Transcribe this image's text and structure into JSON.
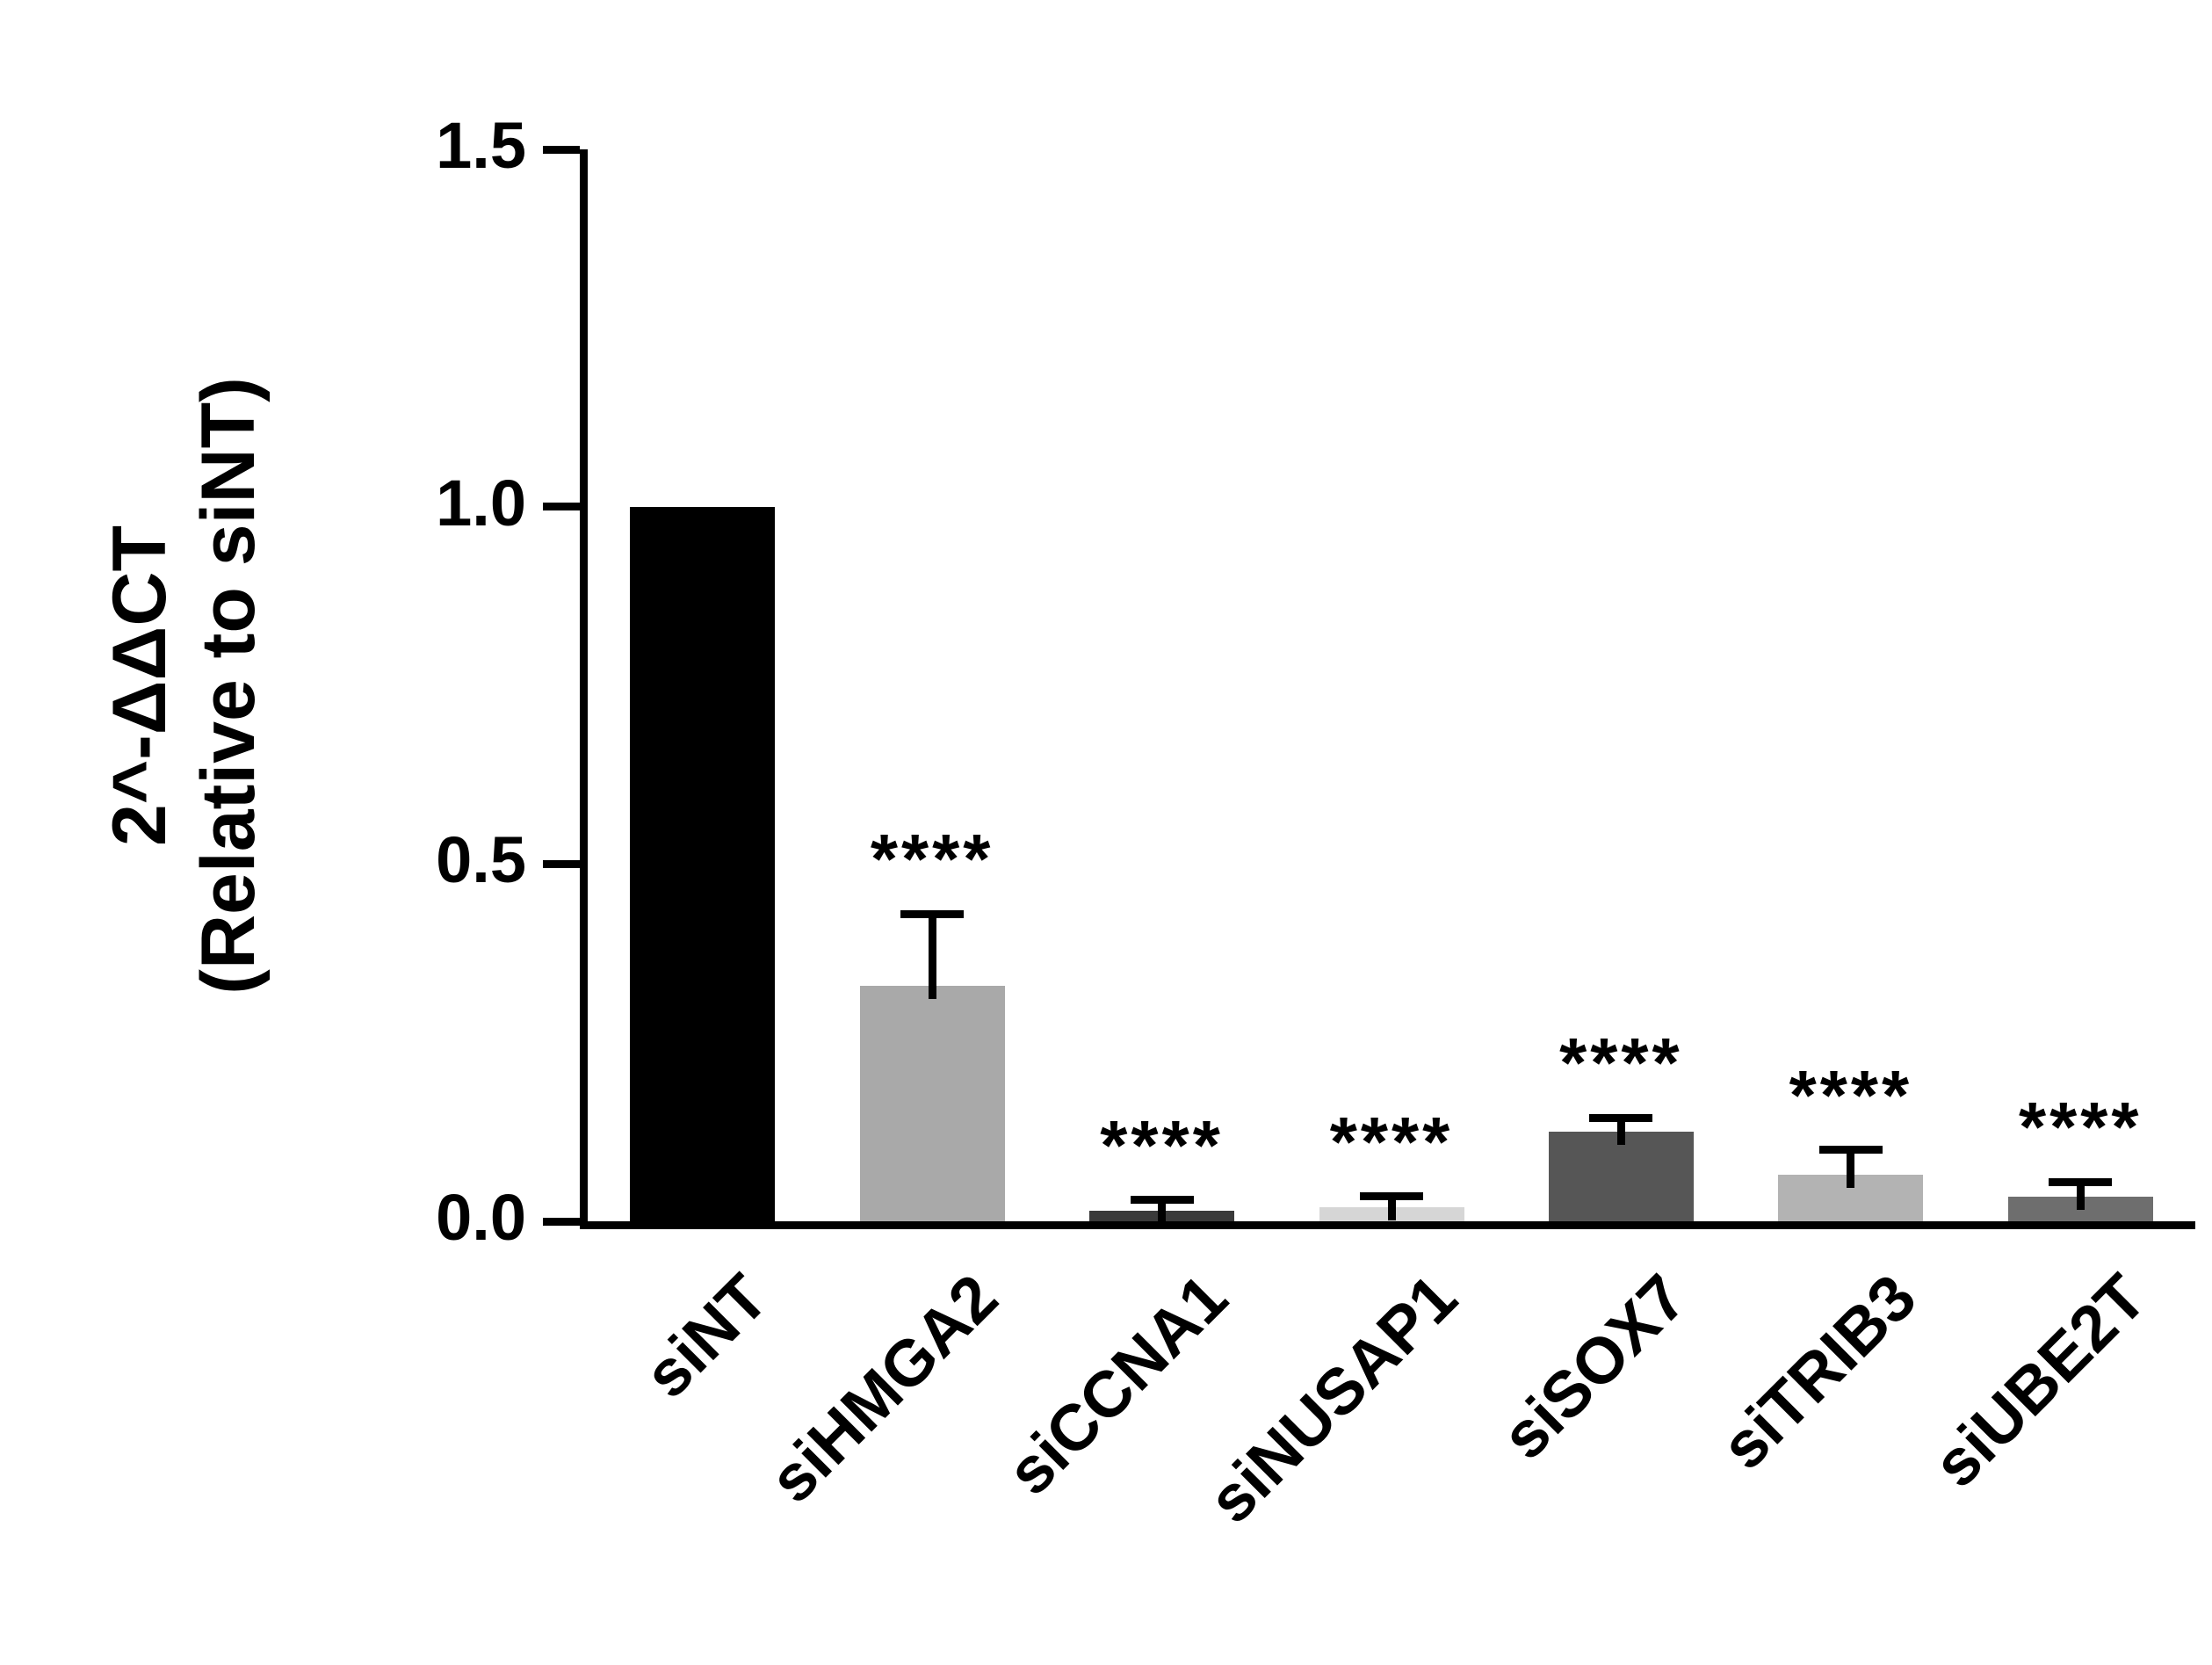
{
  "chart_data": {
    "type": "bar",
    "title": "",
    "ylabel_line1": "2^-ΔΔCT",
    "ylabel_line2": "(Relative to siNT)",
    "xlabel": "",
    "ylim": [
      0,
      1.5
    ],
    "yticks": [
      0.0,
      0.5,
      1.0,
      1.5
    ],
    "ytick_labels": [
      "0.0",
      "0.5",
      "1.0",
      "1.5"
    ],
    "categories": [
      "siNT",
      "siHMGA2",
      "siCCNA1",
      "siNUSAP1",
      "siSOX7",
      "siTRIB3",
      "siUBE2T"
    ],
    "values": [
      1.0,
      0.33,
      0.015,
      0.02,
      0.125,
      0.065,
      0.035
    ],
    "errors": [
      0,
      0.1,
      0.015,
      0.015,
      0.02,
      0.035,
      0.02
    ],
    "significance": [
      "",
      "****",
      "****",
      "****",
      "****",
      "****",
      "****"
    ],
    "bar_colors": [
      "#000000",
      "#a9a9a9",
      "#3a3a3a",
      "#d6d6d6",
      "#565656",
      "#b3b3b3",
      "#6e6e6e"
    ],
    "grid": false,
    "legend": "none"
  }
}
